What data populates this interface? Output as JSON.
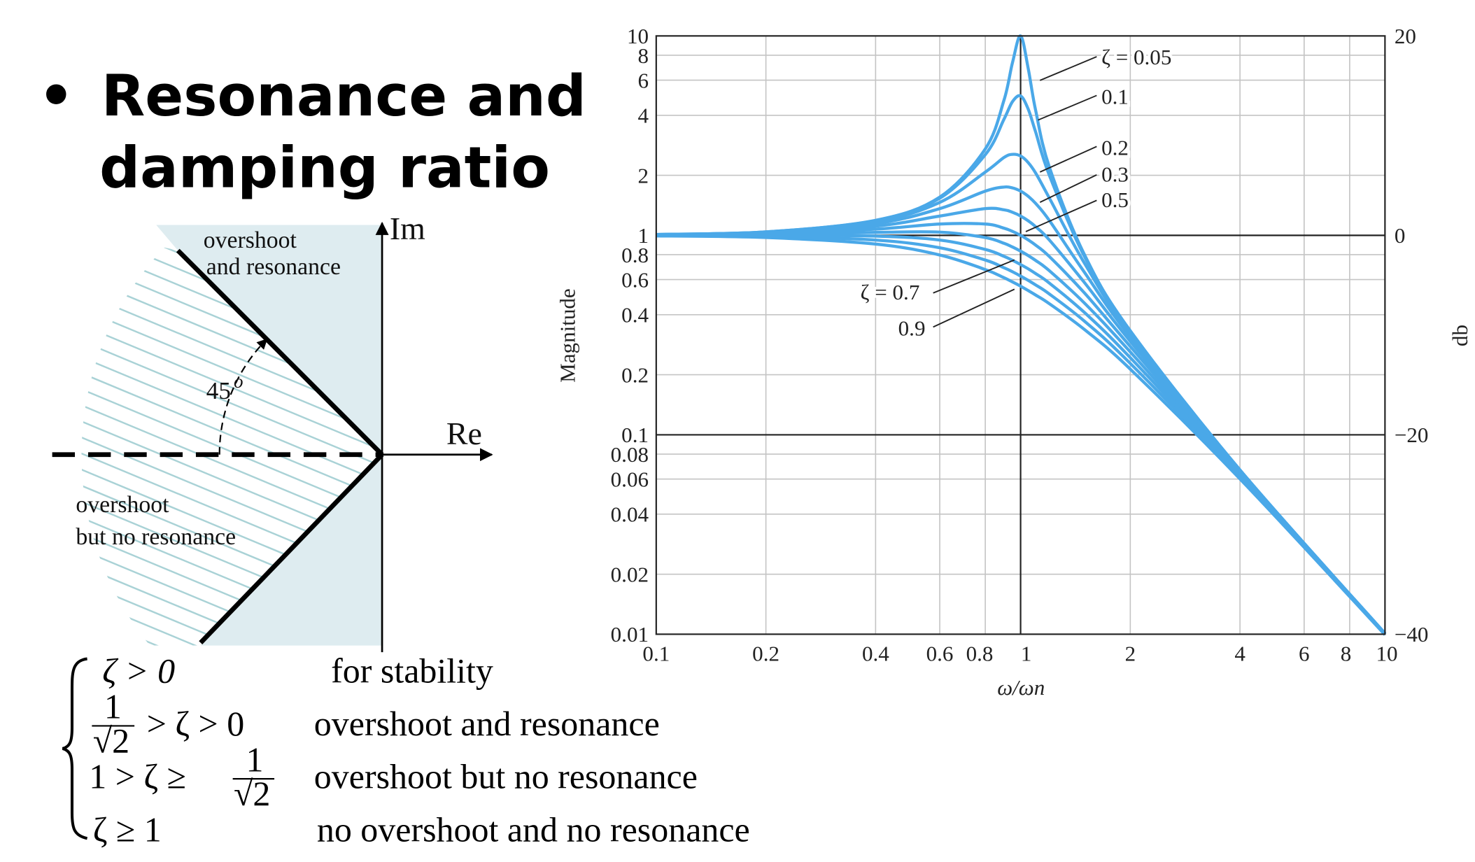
{
  "title": {
    "bullet": "•",
    "line1": "Resonance and",
    "line2": "damping ratio"
  },
  "s_plane": {
    "im_label": "Im",
    "re_label": "Re",
    "region_upper_line1": "overshoot",
    "region_upper_line2": "and resonance",
    "region_lower_line1": "overshoot",
    "region_lower_line2": "but no resonance",
    "angle_label": "45",
    "angle_degree": "o",
    "colors": {
      "shade": "#deecf0",
      "hatch": "#a9d2d6"
    }
  },
  "cases": [
    {
      "condition": "ζ > 0",
      "description": "for stability"
    },
    {
      "cond_frac_num": "1",
      "cond_frac_den": "√2",
      "condition_rest": "> ζ > 0",
      "description": "overshoot and resonance"
    },
    {
      "condition_prefix": "1 > ζ ≥",
      "cond_frac_num": "1",
      "cond_frac_den": "√2",
      "description": "overshoot but no resonance"
    },
    {
      "condition": "ζ ≥ 1",
      "description": "no overshoot and no resonance"
    }
  ],
  "chart_data": {
    "type": "line",
    "xlabel": "ω/ωn",
    "ylabel": "Magnitude",
    "y2label": "db",
    "xscale": "log",
    "yscale": "log",
    "xlim": [
      0.1,
      10
    ],
    "ylim": [
      0.01,
      10
    ],
    "grid": true,
    "x_ticks": [
      "0.1",
      "0.2",
      "0.4",
      "0.6",
      "0.8",
      "1",
      "2",
      "4",
      "6",
      "8",
      "10"
    ],
    "y_ticks": [
      "10",
      "8",
      "6",
      "4",
      "2",
      "1",
      "0.8",
      "0.6",
      "0.4",
      "0.2",
      "0.1",
      "0.08",
      "0.06",
      "0.04",
      "0.02",
      "0.01"
    ],
    "y2_ticks": [
      "20",
      "0",
      "−20",
      "−40"
    ],
    "curve_color": "#4aa8e8",
    "x": [
      0.1,
      0.2,
      0.4,
      0.6,
      0.8,
      0.9,
      0.95,
      1,
      1.05,
      1.1,
      1.2,
      1.5,
      2,
      4,
      10
    ],
    "series": [
      {
        "zeta": 0.05,
        "values": [
          1.01,
          1.041,
          1.189,
          1.556,
          2.712,
          4.757,
          7.346,
          10,
          6.814,
          4.218,
          2.193,
          0.794,
          0.3326,
          0.06664,
          0.0101
        ]
      },
      {
        "zeta": 0.1,
        "values": [
          1.01,
          1.041,
          1.185,
          1.536,
          2.538,
          3.821,
          4.682,
          5,
          4.279,
          3.288,
          1.995,
          0.778,
          0.3304,
          0.06657,
          0.0101
        ]
      },
      {
        "zeta": 0.2,
        "values": [
          1.009,
          1.038,
          1.169,
          1.463,
          2.076,
          2.457,
          2.549,
          2.5,
          2.313,
          2.051,
          1.536,
          0.721,
          0.3221,
          0.06629,
          0.01009
        ]
      },
      {
        "zeta": 0.3,
        "values": [
          1.008,
          1.034,
          1.145,
          1.362,
          1.667,
          1.747,
          1.729,
          1.667,
          1.567,
          1.444,
          1.185,
          0.649,
          0.3095,
          0.06583,
          0.01008
        ]
      },
      {
        "zeta": 0.4,
        "values": [
          1.007,
          1.027,
          1.112,
          1.25,
          1.362,
          1.343,
          1.305,
          1.25,
          1.182,
          1.105,
          0.947,
          0.577,
          0.2941,
          0.0652,
          0.01007
        ]
      },
      {
        "zeta": 0.5,
        "values": [
          1.005,
          1.02,
          1.075,
          1.14,
          1.14,
          1.087,
          1.047,
          1,
          0.948,
          0.893,
          0.782,
          0.512,
          0.2774,
          0.0644,
          0.01005
        ]
      },
      {
        "zeta": 0.6,
        "values": [
          1.003,
          1.011,
          1.034,
          1.038,
          0.975,
          0.912,
          0.874,
          0.833,
          0.791,
          0.748,
          0.664,
          0.456,
          0.2603,
          0.0635,
          0.01003
        ]
      },
      {
        "zeta": 0.7,
        "values": [
          1.0,
          1.0,
          0.991,
          0.947,
          0.85,
          0.785,
          0.75,
          0.714,
          0.679,
          0.643,
          0.576,
          0.409,
          0.2437,
          0.0625,
          0.01
        ]
      },
      {
        "zeta": 0.8,
        "values": [
          0.997,
          0.988,
          0.947,
          0.867,
          0.752,
          0.688,
          0.657,
          0.625,
          0.594,
          0.564,
          0.508,
          0.37,
          0.228,
          0.0613,
          0.00997
        ]
      },
      {
        "zeta": 0.9,
        "values": [
          0.994,
          0.975,
          0.904,
          0.797,
          0.674,
          0.613,
          0.584,
          0.556,
          0.528,
          0.502,
          0.454,
          0.336,
          0.2134,
          0.0601,
          0.00994
        ]
      }
    ],
    "annotations": [
      {
        "text": "ζ = 0.05",
        "zeta": 0.05
      },
      {
        "text": "0.1",
        "zeta": 0.1
      },
      {
        "text": "0.2",
        "zeta": 0.2
      },
      {
        "text": "0.3",
        "zeta": 0.3
      },
      {
        "text": "0.5",
        "zeta": 0.5
      },
      {
        "text": "ζ = 0.7",
        "zeta": 0.7
      },
      {
        "text": "0.9",
        "zeta": 0.9
      }
    ]
  }
}
